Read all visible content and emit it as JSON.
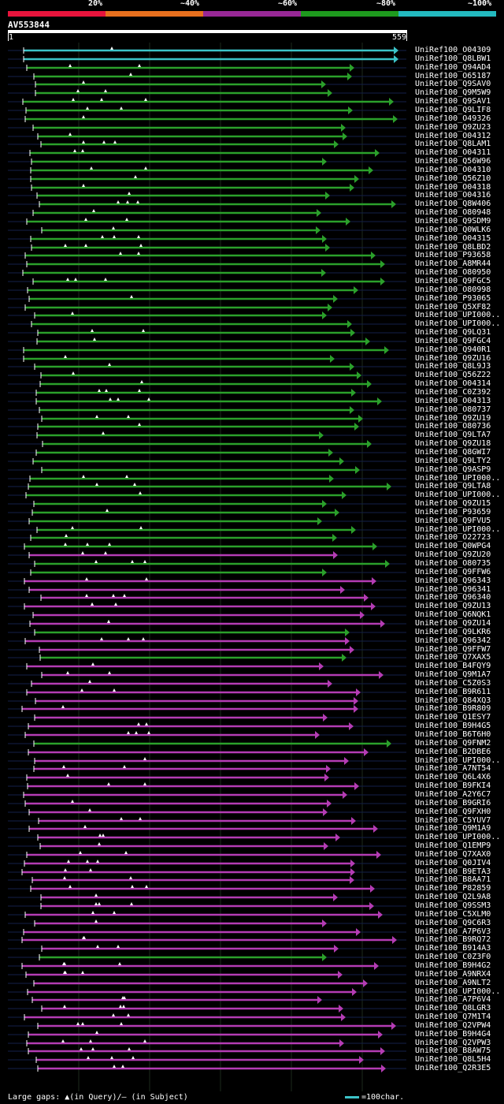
{
  "header": {
    "identity_labels": [
      "20%",
      "~40%",
      "~60%",
      "~80%",
      "~100%"
    ],
    "colors": [
      "#e8143c",
      "#e8701e",
      "#982896",
      "#1e9a1e",
      "#23b9bf"
    ]
  },
  "query": {
    "id": "AV553844",
    "start": "1",
    "end": "559",
    "length": 559
  },
  "legend": {
    "gaps": "Large gaps: ▲(in Query)/– (in Subject)",
    "scale": "=100char."
  },
  "chart_data": {
    "type": "alignment",
    "colors": {
      "cyan": "#3cc3c8",
      "green": "#2ba02b",
      "magenta": "#b43cb4"
    },
    "hits": [
      {
        "name": "UniRef100_O04309",
        "color": "cyan"
      },
      {
        "name": "UniRef100_Q8LBW1",
        "color": "cyan"
      },
      {
        "name": "UniRef100_Q94AD4",
        "color": "green"
      },
      {
        "name": "UniRef100_O65187",
        "color": "green"
      },
      {
        "name": "UniRef100_Q9SAV0",
        "color": "green"
      },
      {
        "name": "UniRef100_Q9M5W9",
        "color": "green"
      },
      {
        "name": "UniRef100_Q9SAV1",
        "color": "green"
      },
      {
        "name": "UniRef100_Q9LIF8",
        "color": "green"
      },
      {
        "name": "UniRef100_O49326",
        "color": "green"
      },
      {
        "name": "UniRef100_Q9ZU23",
        "color": "green"
      },
      {
        "name": "UniRef100_O04312",
        "color": "green"
      },
      {
        "name": "UniRef100_Q8LAM1",
        "color": "green"
      },
      {
        "name": "UniRef100_O04311",
        "color": "green"
      },
      {
        "name": "UniRef100_Q56W96",
        "color": "green"
      },
      {
        "name": "UniRef100_O04310",
        "color": "green"
      },
      {
        "name": "UniRef100_Q56Z10",
        "color": "green"
      },
      {
        "name": "UniRef100_O04318",
        "color": "green"
      },
      {
        "name": "UniRef100_O04316",
        "color": "green"
      },
      {
        "name": "UniRef100_Q8W406",
        "color": "green"
      },
      {
        "name": "UniRef100_O80948",
        "color": "green"
      },
      {
        "name": "UniRef100_Q9SDM9",
        "color": "green"
      },
      {
        "name": "UniRef100_Q0WLK6",
        "color": "green"
      },
      {
        "name": "UniRef100_O04315",
        "color": "green"
      },
      {
        "name": "UniRef100_Q8LBD2",
        "color": "green"
      },
      {
        "name": "UniRef100_P93658",
        "color": "green"
      },
      {
        "name": "UniRef100_A8MR44",
        "color": "green"
      },
      {
        "name": "UniRef100_O80950",
        "color": "green"
      },
      {
        "name": "UniRef100_Q9FGC5",
        "color": "green"
      },
      {
        "name": "UniRef100_O80998",
        "color": "green"
      },
      {
        "name": "UniRef100_P93065",
        "color": "green"
      },
      {
        "name": "UniRef100_Q5XF82",
        "color": "green"
      },
      {
        "name": "UniRef100_UPI000..",
        "color": "green"
      },
      {
        "name": "UniRef100_UPI000..",
        "color": "green"
      },
      {
        "name": "UniRef100_Q9LQ31",
        "color": "green"
      },
      {
        "name": "UniRef100_Q9FGC4",
        "color": "green"
      },
      {
        "name": "UniRef100_Q940R1",
        "color": "green"
      },
      {
        "name": "UniRef100_Q9ZU16",
        "color": "green"
      },
      {
        "name": "UniRef100_Q8L9J3",
        "color": "green"
      },
      {
        "name": "UniRef100_Q56Z22",
        "color": "green"
      },
      {
        "name": "UniRef100_O04314",
        "color": "green"
      },
      {
        "name": "UniRef100_C0Z392",
        "color": "green"
      },
      {
        "name": "UniRef100_O04313",
        "color": "green"
      },
      {
        "name": "UniRef100_O80737",
        "color": "green"
      },
      {
        "name": "UniRef100_Q9ZU19",
        "color": "green"
      },
      {
        "name": "UniRef100_O80736",
        "color": "green"
      },
      {
        "name": "UniRef100_Q9LTA7",
        "color": "green"
      },
      {
        "name": "UniRef100_Q9ZU18",
        "color": "green"
      },
      {
        "name": "UniRef100_Q8GWI7",
        "color": "green"
      },
      {
        "name": "UniRef100_Q9LTY2",
        "color": "green"
      },
      {
        "name": "UniRef100_Q9ASP9",
        "color": "green"
      },
      {
        "name": "UniRef100_UPI000..",
        "color": "green"
      },
      {
        "name": "UniRef100_Q9LTA8",
        "color": "green"
      },
      {
        "name": "UniRef100_UPI000..",
        "color": "green"
      },
      {
        "name": "UniRef100_Q9ZU15",
        "color": "green"
      },
      {
        "name": "UniRef100_P93659",
        "color": "green"
      },
      {
        "name": "UniRef100_Q9FVU5",
        "color": "green"
      },
      {
        "name": "UniRef100_UPI000..",
        "color": "green"
      },
      {
        "name": "UniRef100_O22723",
        "color": "green"
      },
      {
        "name": "UniRef100_Q0WPG4",
        "color": "green"
      },
      {
        "name": "UniRef100_Q9ZU20",
        "color": "magenta"
      },
      {
        "name": "UniRef100_O80735",
        "color": "green"
      },
      {
        "name": "UniRef100_Q9FFW6",
        "color": "green"
      },
      {
        "name": "UniRef100_Q96343",
        "color": "magenta"
      },
      {
        "name": "UniRef100_Q96341",
        "color": "magenta"
      },
      {
        "name": "UniRef100_Q96340",
        "color": "magenta"
      },
      {
        "name": "UniRef100_Q9ZU13",
        "color": "magenta"
      },
      {
        "name": "UniRef100_Q6NQK1",
        "color": "magenta"
      },
      {
        "name": "UniRef100_Q9ZU14",
        "color": "magenta"
      },
      {
        "name": "UniRef100_Q9LKR6",
        "color": "green"
      },
      {
        "name": "UniRef100_Q96342",
        "color": "magenta"
      },
      {
        "name": "UniRef100_Q9FFW7",
        "color": "magenta"
      },
      {
        "name": "UniRef100_Q7XAX5",
        "color": "green"
      },
      {
        "name": "UniRef100_B4FQY9",
        "color": "magenta"
      },
      {
        "name": "UniRef100_Q9M1A7",
        "color": "magenta"
      },
      {
        "name": "UniRef100_C5Z0S3",
        "color": "magenta"
      },
      {
        "name": "UniRef100_B9R611",
        "color": "magenta"
      },
      {
        "name": "UniRef100_Q84XQ3",
        "color": "magenta"
      },
      {
        "name": "UniRef100_B9R809",
        "color": "magenta"
      },
      {
        "name": "UniRef100_Q1ESY7",
        "color": "magenta"
      },
      {
        "name": "UniRef100_B9H4G5",
        "color": "magenta"
      },
      {
        "name": "UniRef100_B6T6H0",
        "color": "magenta"
      },
      {
        "name": "UniRef100_Q9FNM2",
        "color": "green"
      },
      {
        "name": "UniRef100_B2DBE6",
        "color": "magenta"
      },
      {
        "name": "UniRef100_UPI000..",
        "color": "magenta"
      },
      {
        "name": "UniRef100_A7NT54",
        "color": "magenta"
      },
      {
        "name": "UniRef100_Q6L4X6",
        "color": "magenta"
      },
      {
        "name": "UniRef100_B9FKI4",
        "color": "magenta"
      },
      {
        "name": "UniRef100_A2Y6C7",
        "color": "magenta"
      },
      {
        "name": "UniRef100_B9GRI6",
        "color": "magenta"
      },
      {
        "name": "UniRef100_Q9FXH0",
        "color": "magenta"
      },
      {
        "name": "UniRef100_C5YUV7",
        "color": "magenta"
      },
      {
        "name": "UniRef100_Q9M1A9",
        "color": "magenta"
      },
      {
        "name": "UniRef100_UPI000..",
        "color": "magenta"
      },
      {
        "name": "UniRef100_Q1EMP9",
        "color": "magenta"
      },
      {
        "name": "UniRef100_Q7XAX0",
        "color": "magenta"
      },
      {
        "name": "UniRef100_Q0JIV4",
        "color": "magenta"
      },
      {
        "name": "UniRef100_B9ETA3",
        "color": "magenta"
      },
      {
        "name": "UniRef100_B8AA71",
        "color": "magenta"
      },
      {
        "name": "UniRef100_P82859",
        "color": "magenta"
      },
      {
        "name": "UniRef100_Q2L9A8",
        "color": "magenta"
      },
      {
        "name": "UniRef100_Q9SSM3",
        "color": "magenta"
      },
      {
        "name": "UniRef100_C5XLM0",
        "color": "magenta"
      },
      {
        "name": "UniRef100_Q9C6R3",
        "color": "magenta"
      },
      {
        "name": "UniRef100_A7P6V3",
        "color": "magenta"
      },
      {
        "name": "UniRef100_B9RQ72",
        "color": "magenta"
      },
      {
        "name": "UniRef100_B914A3",
        "color": "magenta"
      },
      {
        "name": "UniRef100_C0Z3F0",
        "color": "green"
      },
      {
        "name": "UniRef100_B9H4G2",
        "color": "magenta"
      },
      {
        "name": "UniRef100_A9NRX4",
        "color": "magenta"
      },
      {
        "name": "UniRef100_A9NLT2",
        "color": "magenta"
      },
      {
        "name": "UniRef100_UPI000..",
        "color": "magenta"
      },
      {
        "name": "UniRef100_A7P6V4",
        "color": "magenta"
      },
      {
        "name": "UniRef100_Q8LGR3",
        "color": "magenta"
      },
      {
        "name": "UniRef100_Q7M1T4",
        "color": "magenta"
      },
      {
        "name": "UniRef100_Q2VPW4",
        "color": "magenta"
      },
      {
        "name": "UniRef100_B9H4G4",
        "color": "magenta"
      },
      {
        "name": "UniRef100_Q2VPW3",
        "color": "magenta"
      },
      {
        "name": "UniRef100_B8AW75",
        "color": "magenta"
      },
      {
        "name": "UniRef100_Q8L5H4",
        "color": "magenta"
      },
      {
        "name": "UniRef100_Q2R3E5",
        "color": "magenta"
      }
    ]
  }
}
